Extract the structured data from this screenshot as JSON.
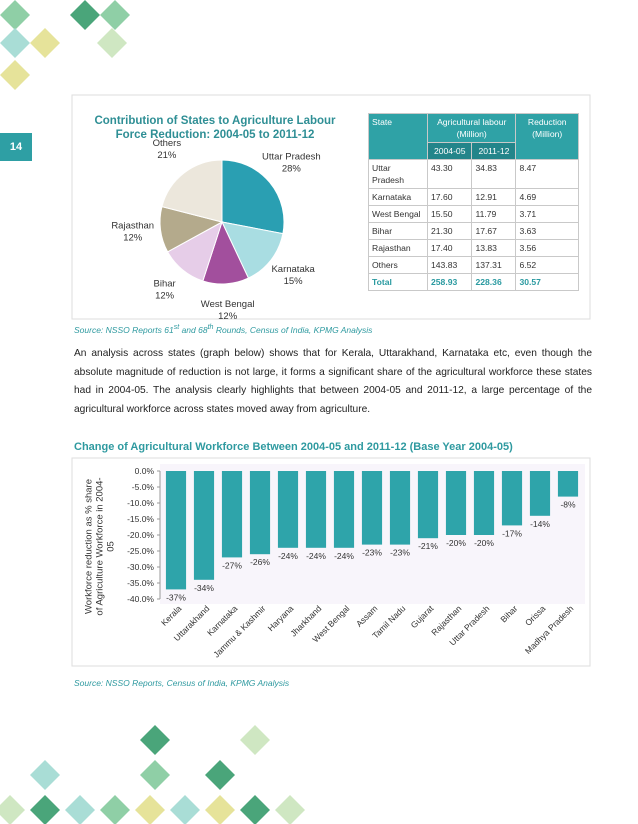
{
  "page_number": "14",
  "chart_data": [
    {
      "type": "pie",
      "title": "Contribution of States to Agriculture Labour Force Reduction: 2004-05 to 2011-12",
      "categories": [
        "Uttar Pradesh",
        "Karnataka",
        "West Bengal",
        "Bihar",
        "Rajasthan",
        "Others"
      ],
      "values": [
        28,
        15,
        12,
        12,
        12,
        21
      ],
      "value_labels": [
        "28%",
        "15%",
        "12%",
        "12%",
        "12%",
        "21%"
      ],
      "colors": [
        "#2a9fb2",
        "#a9dde2",
        "#a24f9d",
        "#e6cde8",
        "#b4aa8c",
        "#ece7dc"
      ]
    },
    {
      "type": "bar",
      "title": "Change of Agricultural Workforce Between 2004-05 and 2011-12 (Base Year 2004-05)",
      "y_label": "Workforce reduction as % share of Agriculture Workforce in 2004-05",
      "categories": [
        "Kerala",
        "Uttarakhand",
        "Karnataka",
        "Jammu & Kashmir",
        "Haryana",
        "Jharkhand",
        "West Bengal",
        "Assam",
        "Tamil Nadu",
        "Gujarat",
        "Rajasthan",
        "Uttar Pradesh",
        "Bihar",
        "Orissa",
        "Madhya Pradesh"
      ],
      "values": [
        -37,
        -34,
        -27,
        -26,
        -24,
        -24,
        -24,
        -23,
        -23,
        -21,
        -20,
        -20,
        -17,
        -14,
        -8
      ],
      "value_labels": [
        "-37%",
        "-34%",
        "-27%",
        "-26%",
        "-24%",
        "-24%",
        "-24%",
        "-23%",
        "-23%",
        "-21%",
        "-20%",
        "-20%",
        "-17%",
        "-14%",
        "-8%"
      ],
      "color": "#2ea4aa",
      "ylim": [
        -40,
        0
      ],
      "yticks": [
        {
          "value": 0,
          "label": "0.0%"
        },
        {
          "value": -5,
          "label": "-5.0%"
        },
        {
          "value": -10,
          "label": "-10.0%"
        },
        {
          "value": -15,
          "label": "-15.0%"
        },
        {
          "value": -20,
          "label": "-20.0%"
        },
        {
          "value": -25,
          "label": "-25.0%"
        },
        {
          "value": -30,
          "label": "-30.0%"
        },
        {
          "value": -35,
          "label": "-35.0%"
        },
        {
          "value": -40,
          "label": "-40.0%"
        }
      ]
    }
  ],
  "table": {
    "columns": [
      "State",
      "Agricultural labour (Million)",
      "Reduction (Million)"
    ],
    "subcolumns": [
      "2004-05",
      "2011-12"
    ],
    "rows": [
      [
        "Uttar Pradesh",
        "43.30",
        "34.83",
        "8.47"
      ],
      [
        "Karnataka",
        "17.60",
        "12.91",
        "4.69"
      ],
      [
        "West Bengal",
        "15.50",
        "11.79",
        "3.71"
      ],
      [
        "Bihar",
        "21.30",
        "17.67",
        "3.63"
      ],
      [
        "Rajasthan",
        "17.40",
        "13.83",
        "3.56"
      ],
      [
        "Others",
        "143.83",
        "137.31",
        "6.52"
      ],
      [
        "Total",
        "258.93",
        "228.36",
        "30.57"
      ]
    ]
  },
  "source_1": [
    "Source: NSSO Reports 61",
    "st",
    " and 68",
    "th",
    " Rounds, Census of India, KPMG Analysis"
  ],
  "paragraph": "An analysis across states (graph below) shows that for Kerala, Uttarakhand, Karnataka etc, even though the absolute magnitude of reduction is not large, it forms a significant share of the agricultural workforce these states had in 2004-05. The analysis clearly highlights that between 2004-05 and 2011-12, a large percentage of the agricultural workforce across states moved away from agriculture.",
  "source_2": "Source: NSSO Reports, Census of India, KPMG Analysis"
}
